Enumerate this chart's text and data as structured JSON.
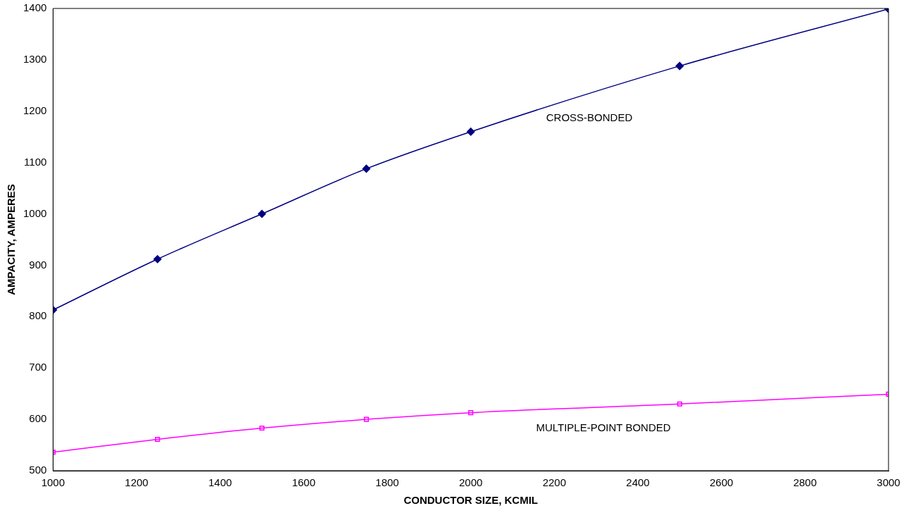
{
  "chart_data": {
    "type": "line",
    "xlabel": "CONDUCTOR SIZE, KCMIL",
    "ylabel": "AMPACITY, AMPERES",
    "x": [
      1000,
      1250,
      1500,
      1750,
      2000,
      2500,
      3000
    ],
    "series": [
      {
        "name": "CROSS-BONDED",
        "color": "#000080",
        "marker": "diamond",
        "values": [
          813,
          912,
          1000,
          1088,
          1160,
          1288,
          1399
        ]
      },
      {
        "name": "MULTIPLE-POINT BONDED",
        "color": "#ff00ff",
        "marker": "square",
        "values": [
          536,
          561,
          583,
          600,
          613,
          630,
          649
        ]
      }
    ],
    "xlim": [
      1000,
      3000
    ],
    "xticks": [
      1000,
      1200,
      1400,
      1600,
      1800,
      2000,
      2200,
      2400,
      2600,
      2800,
      3000
    ],
    "ylim": [
      500,
      1400
    ],
    "yticks": [
      500,
      600,
      700,
      800,
      900,
      1000,
      1100,
      1200,
      1300,
      1400
    ],
    "grid": false,
    "legend": false
  }
}
